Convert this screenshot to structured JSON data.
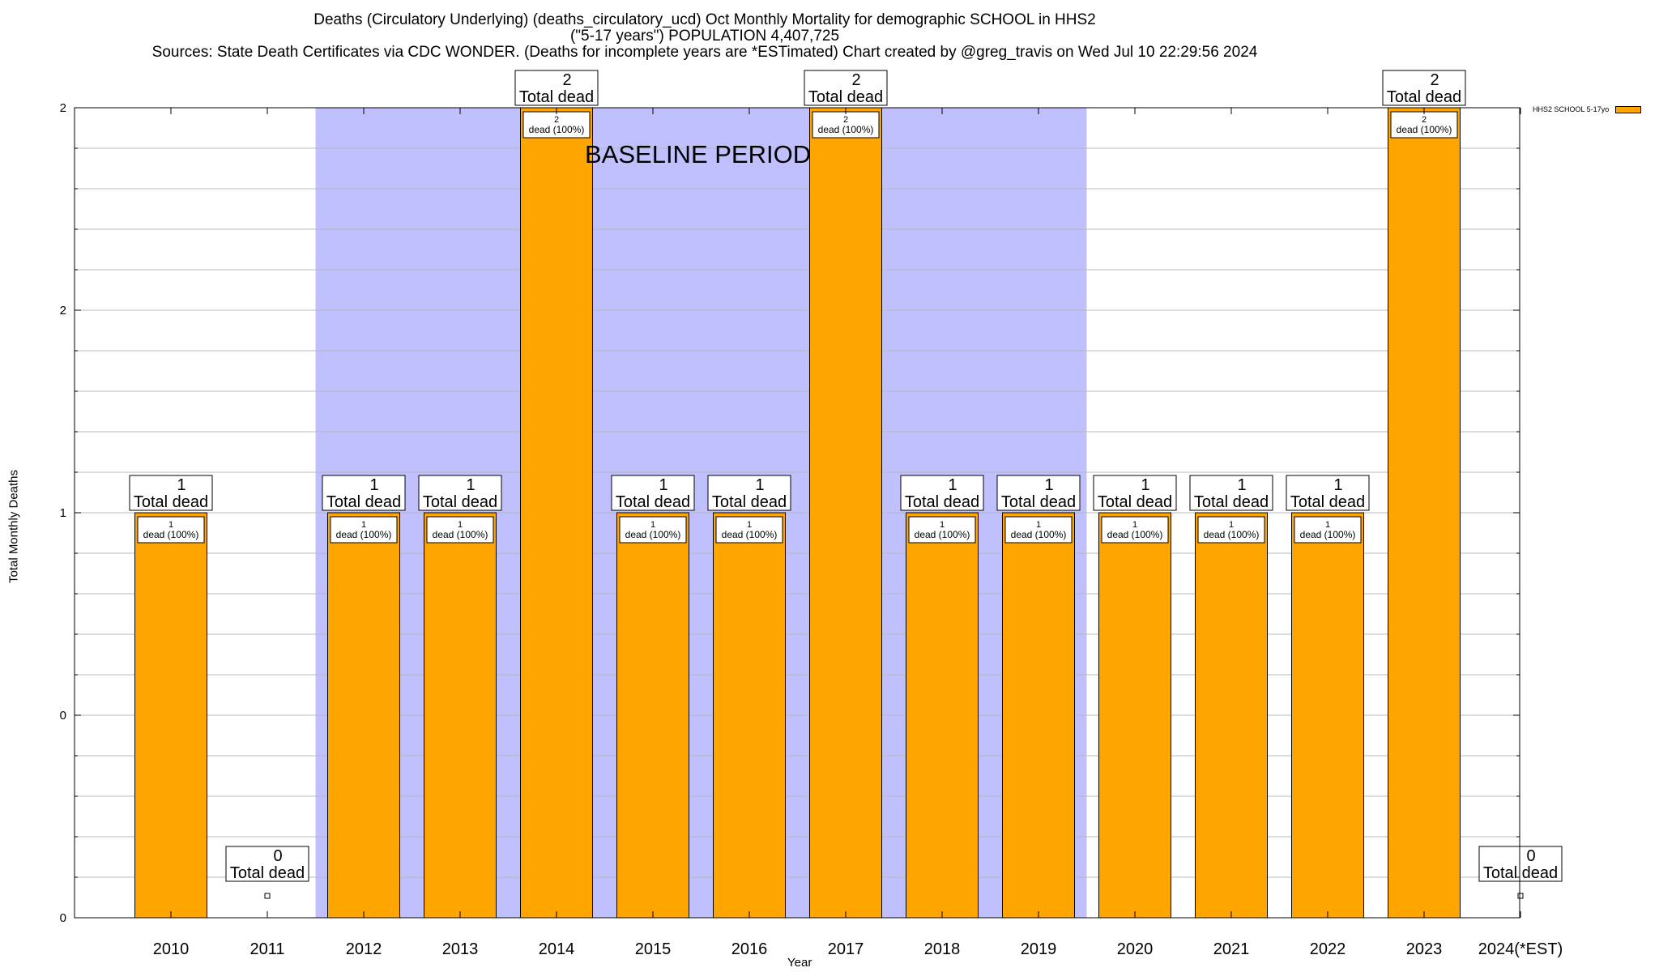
{
  "title": {
    "line1": "Deaths (Circulatory Underlying) (deaths_circulatory_ucd) Oct Monthly Mortality for demographic SCHOOL in HHS2",
    "line2": "(\"5-17 years\") POPULATION 4,407,725",
    "line3": "Sources: State Death Certificates via CDC WONDER. (Deaths for incomplete years are *ESTimated)                Chart created by @greg_travis on Wed Jul 10 22:29:56 2024"
  },
  "baseline_label": "BASELINE PERIOD",
  "legend": {
    "label": "HHS2 SCHOOL 5-17yo"
  },
  "chart_data": {
    "type": "bar",
    "xlabel": "Year",
    "ylabel": "Total Monthly Deaths",
    "categories": [
      "2010",
      "2011",
      "2012",
      "2013",
      "2014",
      "2015",
      "2016",
      "2017",
      "2018",
      "2019",
      "2020",
      "2021",
      "2022",
      "2023",
      "2024(*EST)"
    ],
    "series": [
      {
        "name": "HHS2 SCHOOL 5-17yo",
        "color": "#ffa500",
        "values": [
          1,
          0,
          1,
          1,
          2,
          1,
          1,
          2,
          1,
          1,
          1,
          1,
          1,
          2,
          0
        ]
      }
    ],
    "total_label_suffix": "Total dead",
    "bar_label_suffix": "dead (100%)",
    "ylim": [
      0,
      2
    ],
    "y_tick_labels": [
      "0",
      "0",
      "1",
      "2",
      "2"
    ],
    "baseline_period": {
      "start": "2012",
      "end": "2019",
      "color": "#c0c0ff"
    },
    "grid": true
  }
}
